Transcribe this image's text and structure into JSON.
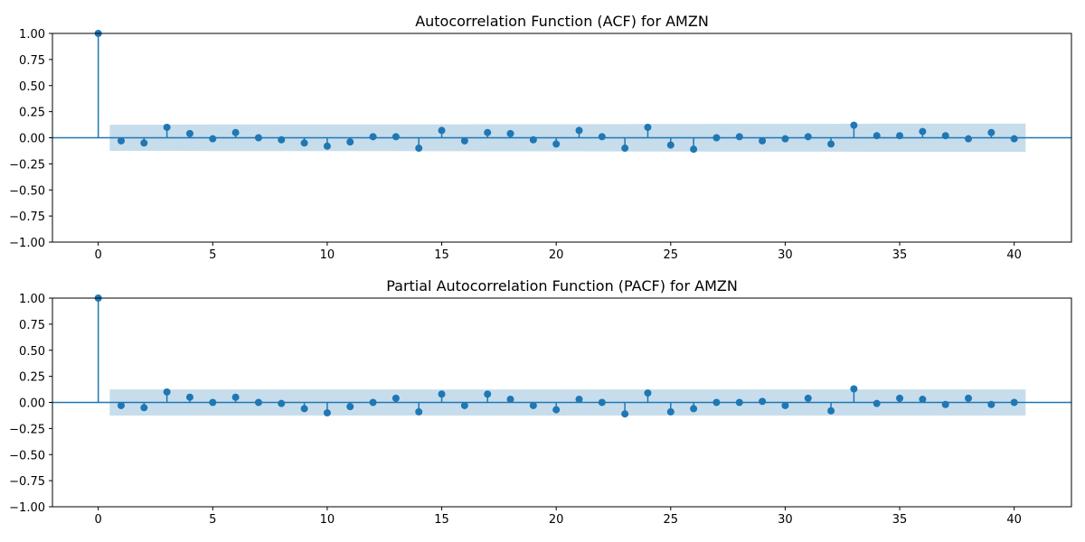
{
  "chart_data": [
    {
      "type": "stem",
      "title": "Autocorrelation Function (ACF) for AMZN",
      "xlabel": "",
      "ylabel": "",
      "xlim": [
        -2,
        42.5
      ],
      "ylim": [
        -1.0,
        1.0
      ],
      "x_ticks": [
        "0",
        "5",
        "10",
        "15",
        "20",
        "25",
        "30",
        "35",
        "40"
      ],
      "y_ticks": [
        "1.00",
        "0.75",
        "0.50",
        "0.25",
        "0.00",
        "−0.25",
        "−0.50",
        "−0.75",
        "−1.00"
      ],
      "lags": [
        0,
        1,
        2,
        3,
        4,
        5,
        6,
        7,
        8,
        9,
        10,
        11,
        12,
        13,
        14,
        15,
        16,
        17,
        18,
        19,
        20,
        21,
        22,
        23,
        24,
        25,
        26,
        27,
        28,
        29,
        30,
        31,
        32,
        33,
        34,
        35,
        36,
        37,
        38,
        39,
        40
      ],
      "values": [
        1.0,
        -0.03,
        -0.05,
        0.1,
        0.04,
        -0.01,
        0.05,
        0.0,
        -0.02,
        -0.05,
        -0.08,
        -0.04,
        0.01,
        0.01,
        -0.1,
        0.07,
        -0.03,
        0.05,
        0.04,
        -0.02,
        -0.06,
        0.07,
        0.01,
        -0.1,
        0.1,
        -0.07,
        -0.11,
        0.0,
        0.01,
        -0.03,
        -0.01,
        0.01,
        -0.06,
        0.12,
        0.02,
        0.02,
        0.06,
        0.02,
        -0.01,
        0.05,
        -0.01
      ],
      "confidence_band": {
        "lags": [
          0.5,
          1,
          2,
          3,
          4,
          5,
          6,
          7,
          8,
          9,
          10,
          11,
          12,
          13,
          14,
          15,
          16,
          17,
          18,
          19,
          20,
          21,
          22,
          23,
          24,
          25,
          26,
          27,
          28,
          29,
          30,
          31,
          32,
          33,
          34,
          35,
          36,
          37,
          38,
          39,
          40,
          40.5
        ],
        "upper": [
          0.125,
          0.125,
          0.125,
          0.126,
          0.127,
          0.128,
          0.128,
          0.128,
          0.128,
          0.128,
          0.128,
          0.128,
          0.128,
          0.128,
          0.129,
          0.129,
          0.129,
          0.13,
          0.13,
          0.13,
          0.13,
          0.13,
          0.131,
          0.131,
          0.132,
          0.132,
          0.132,
          0.133,
          0.133,
          0.133,
          0.133,
          0.133,
          0.133,
          0.134,
          0.135,
          0.135,
          0.135,
          0.135,
          0.135,
          0.135,
          0.135,
          0.135
        ]
      },
      "colors": {
        "stem": "#1f77b4",
        "band": "#1f77b4",
        "band_opacity": 0.25
      }
    },
    {
      "type": "stem",
      "title": "Partial Autocorrelation Function (PACF) for AMZN",
      "xlabel": "",
      "ylabel": "",
      "xlim": [
        -2,
        42.5
      ],
      "ylim": [
        -1.0,
        1.0
      ],
      "x_ticks": [
        "0",
        "5",
        "10",
        "15",
        "20",
        "25",
        "30",
        "35",
        "40"
      ],
      "y_ticks": [
        "1.00",
        "0.75",
        "0.50",
        "0.25",
        "0.00",
        "−0.25",
        "−0.50",
        "−0.75",
        "−1.00"
      ],
      "lags": [
        0,
        1,
        2,
        3,
        4,
        5,
        6,
        7,
        8,
        9,
        10,
        11,
        12,
        13,
        14,
        15,
        16,
        17,
        18,
        19,
        20,
        21,
        22,
        23,
        24,
        25,
        26,
        27,
        28,
        29,
        30,
        31,
        32,
        33,
        34,
        35,
        36,
        37,
        38,
        39,
        40
      ],
      "values": [
        1.0,
        -0.03,
        -0.05,
        0.1,
        0.05,
        0.0,
        0.05,
        0.0,
        -0.01,
        -0.06,
        -0.1,
        -0.04,
        0.0,
        0.04,
        -0.09,
        0.08,
        -0.03,
        0.08,
        0.03,
        -0.03,
        -0.07,
        0.03,
        0.0,
        -0.11,
        0.09,
        -0.09,
        -0.06,
        0.0,
        0.0,
        0.01,
        -0.03,
        0.04,
        -0.08,
        0.13,
        -0.01,
        0.04,
        0.03,
        -0.02,
        0.04,
        -0.02,
        0.0
      ],
      "confidence_band": {
        "lags": [
          0.5,
          40.5
        ],
        "upper": [
          0.125,
          0.125
        ]
      },
      "colors": {
        "stem": "#1f77b4",
        "band": "#1f77b4",
        "band_opacity": 0.25
      }
    }
  ]
}
